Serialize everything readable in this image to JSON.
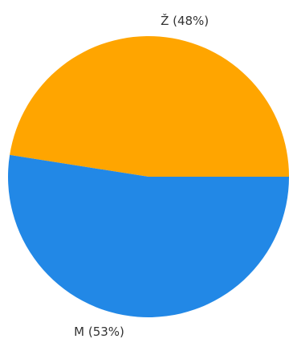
{
  "chart_data": {
    "type": "pie",
    "categories": [
      "Ž (48%)",
      "M (53%)"
    ],
    "values": [
      48,
      53
    ],
    "colors": [
      "#ffa500",
      "#2288e6"
    ]
  }
}
